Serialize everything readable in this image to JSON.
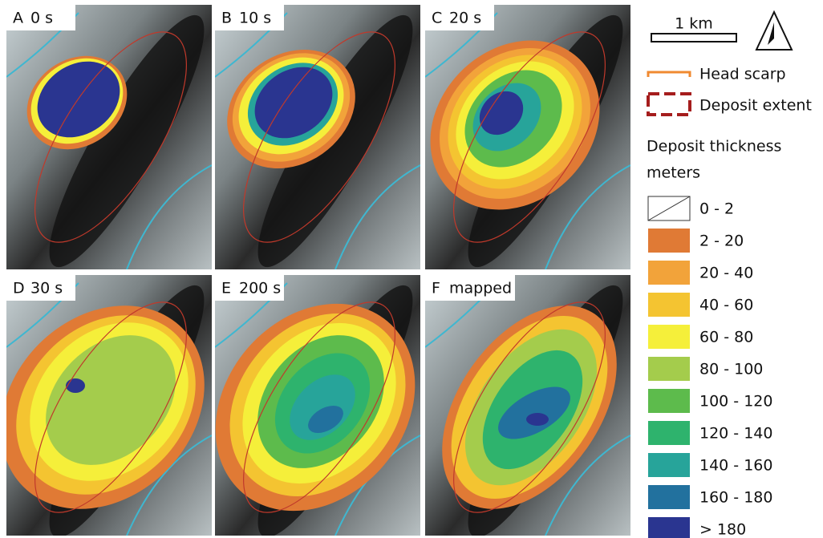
{
  "panels": [
    {
      "letter": "A",
      "label": "0 s"
    },
    {
      "letter": "B",
      "label": "10 s"
    },
    {
      "letter": "C",
      "label": "20 s"
    },
    {
      "letter": "D",
      "label": "30 s"
    },
    {
      "letter": "E",
      "label": "200 s"
    },
    {
      "letter": "F",
      "label": "mapped"
    }
  ],
  "scale_bar": {
    "label": "1 km"
  },
  "legend": {
    "head_scarp": "Head scarp",
    "deposit_extent": "Deposit extent",
    "thickness_title": "Deposit thickness",
    "thickness_units": "meters",
    "classes": [
      {
        "label": "0 - 2",
        "color": "#ffffff"
      },
      {
        "label": "2 - 20",
        "color": "#e07a35"
      },
      {
        "label": "20 - 40",
        "color": "#f2a33a"
      },
      {
        "label": "40 - 60",
        "color": "#f4c431"
      },
      {
        "label": "60 - 80",
        "color": "#f5ef3a"
      },
      {
        "label": "80 - 100",
        "color": "#a4cc4c"
      },
      {
        "label": "100 - 120",
        "color": "#5dbb4c"
      },
      {
        "label": "120 - 140",
        "color": "#2eb36d"
      },
      {
        "label": "140 - 160",
        "color": "#27a49a"
      },
      {
        "label": "160 - 180",
        "color": "#22719e"
      },
      {
        "label": "> 180",
        "color": "#2a3590"
      }
    ]
  }
}
